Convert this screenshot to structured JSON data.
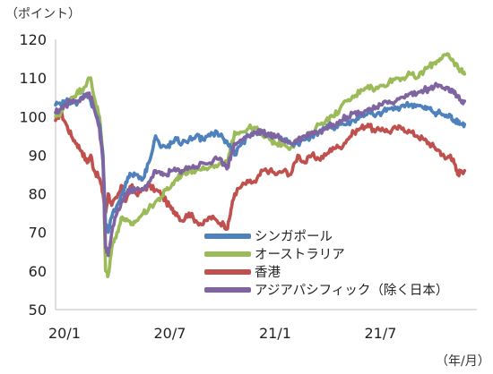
{
  "chart_data": {
    "type": "line",
    "y_unit_label": "（ポイント）",
    "x_unit_label": "（年/月）",
    "ylim": [
      50,
      120
    ],
    "yticks": [
      50,
      60,
      70,
      80,
      90,
      100,
      110,
      120
    ],
    "x_range": [
      0,
      24
    ],
    "xticks": [
      {
        "pos": 0,
        "label": "20/1"
      },
      {
        "pos": 6,
        "label": "20/7"
      },
      {
        "pos": 12,
        "label": "21/1"
      },
      {
        "pos": 18,
        "label": "21/7"
      }
    ],
    "grid": false,
    "legend_position": "lower-right",
    "series": [
      {
        "name": "香港",
        "color": "#c0504d",
        "points": [
          [
            0,
            99
          ],
          [
            0.3,
            101
          ],
          [
            0.6,
            98
          ],
          [
            0.9,
            95
          ],
          [
            1.2,
            93
          ],
          [
            1.5,
            91
          ],
          [
            1.8,
            88
          ],
          [
            2.0,
            90
          ],
          [
            2.2,
            86
          ],
          [
            2.5,
            84
          ],
          [
            2.7,
            80
          ],
          [
            2.85,
            75
          ],
          [
            3.0,
            80
          ],
          [
            3.2,
            77
          ],
          [
            3.5,
            79
          ],
          [
            3.8,
            82
          ],
          [
            4.0,
            78
          ],
          [
            4.3,
            82
          ],
          [
            4.6,
            80
          ],
          [
            5.0,
            81
          ],
          [
            5.3,
            82
          ],
          [
            5.7,
            81
          ],
          [
            6.0,
            80
          ],
          [
            6.3,
            78
          ],
          [
            6.6,
            76
          ],
          [
            6.9,
            75
          ],
          [
            7.2,
            73
          ],
          [
            7.6,
            75
          ],
          [
            8.0,
            73
          ],
          [
            8.4,
            72
          ],
          [
            8.8,
            74
          ],
          [
            9.2,
            73
          ],
          [
            9.6,
            72
          ],
          [
            9.8,
            71
          ],
          [
            10.0,
            76
          ],
          [
            10.2,
            80
          ],
          [
            10.6,
            82
          ],
          [
            11.0,
            83
          ],
          [
            11.4,
            83
          ],
          [
            11.8,
            86
          ],
          [
            12.2,
            86
          ],
          [
            12.6,
            85
          ],
          [
            13.0,
            86
          ],
          [
            13.4,
            85
          ],
          [
            13.8,
            90
          ],
          [
            14.2,
            88
          ],
          [
            14.6,
            90
          ],
          [
            15.0,
            89
          ],
          [
            15.4,
            90
          ],
          [
            15.8,
            92
          ],
          [
            16.2,
            92
          ],
          [
            16.6,
            94
          ],
          [
            17.0,
            96
          ],
          [
            17.4,
            97
          ],
          [
            17.8,
            98
          ],
          [
            18.2,
            96
          ],
          [
            18.6,
            97
          ],
          [
            19.0,
            96
          ],
          [
            19.4,
            97
          ],
          [
            19.8,
            97
          ],
          [
            20.2,
            96
          ],
          [
            20.6,
            95
          ],
          [
            21.0,
            94
          ],
          [
            21.3,
            93
          ],
          [
            21.6,
            92
          ],
          [
            21.9,
            91
          ],
          [
            22.2,
            89
          ],
          [
            22.5,
            90
          ],
          [
            22.7,
            88
          ],
          [
            22.9,
            85
          ],
          [
            23.1,
            86
          ],
          [
            23.3,
            86
          ]
        ]
      },
      {
        "name": "オーストラリア",
        "color": "#9bbb59",
        "points": [
          [
            0,
            100
          ],
          [
            0.3,
            101
          ],
          [
            0.6,
            103
          ],
          [
            0.9,
            105
          ],
          [
            1.2,
            106
          ],
          [
            1.5,
            107
          ],
          [
            1.8,
            109
          ],
          [
            2.0,
            110
          ],
          [
            2.2,
            105
          ],
          [
            2.5,
            100
          ],
          [
            2.7,
            90
          ],
          [
            2.85,
            60
          ],
          [
            3.0,
            59
          ],
          [
            3.2,
            66
          ],
          [
            3.5,
            70
          ],
          [
            3.8,
            74
          ],
          [
            4.0,
            73
          ],
          [
            4.3,
            72
          ],
          [
            4.6,
            73
          ],
          [
            5.0,
            75
          ],
          [
            5.3,
            76
          ],
          [
            5.7,
            78
          ],
          [
            6.0,
            79
          ],
          [
            6.3,
            81
          ],
          [
            6.6,
            82
          ],
          [
            6.9,
            84
          ],
          [
            7.2,
            85
          ],
          [
            7.6,
            86
          ],
          [
            8.0,
            86
          ],
          [
            8.4,
            87
          ],
          [
            8.8,
            87
          ],
          [
            9.2,
            87
          ],
          [
            9.6,
            88
          ],
          [
            9.8,
            88
          ],
          [
            10.0,
            92
          ],
          [
            10.2,
            96
          ],
          [
            10.6,
            96
          ],
          [
            11.0,
            97
          ],
          [
            11.4,
            97
          ],
          [
            11.8,
            95
          ],
          [
            12.2,
            94
          ],
          [
            12.6,
            93
          ],
          [
            13.0,
            93
          ],
          [
            13.4,
            92
          ],
          [
            13.8,
            94
          ],
          [
            14.2,
            94
          ],
          [
            14.6,
            96
          ],
          [
            15.0,
            98
          ],
          [
            15.4,
            99
          ],
          [
            15.8,
            100
          ],
          [
            16.2,
            102
          ],
          [
            16.6,
            104
          ],
          [
            17.0,
            105
          ],
          [
            17.4,
            107
          ],
          [
            17.8,
            108
          ],
          [
            18.2,
            107
          ],
          [
            18.6,
            108
          ],
          [
            19.0,
            109
          ],
          [
            19.4,
            110
          ],
          [
            19.8,
            110
          ],
          [
            20.2,
            111
          ],
          [
            20.6,
            110
          ],
          [
            21.0,
            112
          ],
          [
            21.3,
            113
          ],
          [
            21.6,
            114
          ],
          [
            21.9,
            115
          ],
          [
            22.2,
            116
          ],
          [
            22.5,
            115
          ],
          [
            22.7,
            114
          ],
          [
            22.9,
            113
          ],
          [
            23.1,
            112
          ],
          [
            23.3,
            111
          ]
        ]
      },
      {
        "name": "シンガポール",
        "color": "#4f81bd",
        "points": [
          [
            0,
            103
          ],
          [
            0.3,
            103
          ],
          [
            0.6,
            104
          ],
          [
            0.9,
            104
          ],
          [
            1.2,
            103
          ],
          [
            1.5,
            105
          ],
          [
            1.8,
            106
          ],
          [
            2.0,
            104
          ],
          [
            2.2,
            102
          ],
          [
            2.5,
            98
          ],
          [
            2.7,
            90
          ],
          [
            2.85,
            72
          ],
          [
            3.0,
            70
          ],
          [
            3.2,
            74
          ],
          [
            3.5,
            77
          ],
          [
            3.8,
            80
          ],
          [
            4.0,
            83
          ],
          [
            4.3,
            85
          ],
          [
            4.6,
            85
          ],
          [
            5.0,
            84
          ],
          [
            5.3,
            88
          ],
          [
            5.7,
            95
          ],
          [
            6.0,
            92
          ],
          [
            6.3,
            92
          ],
          [
            6.6,
            93
          ],
          [
            6.9,
            94
          ],
          [
            7.2,
            93
          ],
          [
            7.6,
            94
          ],
          [
            8.0,
            95
          ],
          [
            8.4,
            94
          ],
          [
            8.8,
            95
          ],
          [
            9.2,
            96
          ],
          [
            9.6,
            94
          ],
          [
            9.8,
            93
          ],
          [
            10.0,
            92
          ],
          [
            10.2,
            90
          ],
          [
            10.6,
            93
          ],
          [
            11.0,
            95
          ],
          [
            11.4,
            96
          ],
          [
            11.8,
            96
          ],
          [
            12.2,
            95
          ],
          [
            12.6,
            95
          ],
          [
            13.0,
            94
          ],
          [
            13.4,
            93
          ],
          [
            13.8,
            93
          ],
          [
            14.2,
            94
          ],
          [
            14.6,
            95
          ],
          [
            15.0,
            96
          ],
          [
            15.4,
            97
          ],
          [
            15.8,
            97
          ],
          [
            16.2,
            98
          ],
          [
            16.6,
            98
          ],
          [
            17.0,
            99
          ],
          [
            17.4,
            100
          ],
          [
            17.8,
            101
          ],
          [
            18.2,
            100
          ],
          [
            18.6,
            101
          ],
          [
            19.0,
            102
          ],
          [
            19.4,
            102
          ],
          [
            19.8,
            103
          ],
          [
            20.2,
            103
          ],
          [
            20.6,
            103
          ],
          [
            21.0,
            102
          ],
          [
            21.3,
            102
          ],
          [
            21.6,
            101
          ],
          [
            21.9,
            101
          ],
          [
            22.2,
            100
          ],
          [
            22.5,
            100
          ],
          [
            22.7,
            99
          ],
          [
            22.9,
            99
          ],
          [
            23.1,
            98
          ],
          [
            23.3,
            98
          ]
        ]
      },
      {
        "name": "アジアパシフィック（除く日本）",
        "color": "#8064a2",
        "points": [
          [
            0,
            101
          ],
          [
            0.3,
            102
          ],
          [
            0.6,
            103
          ],
          [
            0.9,
            104
          ],
          [
            1.2,
            104
          ],
          [
            1.5,
            105
          ],
          [
            1.8,
            106
          ],
          [
            2.0,
            105
          ],
          [
            2.2,
            102
          ],
          [
            2.5,
            97
          ],
          [
            2.7,
            88
          ],
          [
            2.85,
            66
          ],
          [
            3.0,
            64
          ],
          [
            3.2,
            70
          ],
          [
            3.5,
            75
          ],
          [
            3.8,
            78
          ],
          [
            4.0,
            80
          ],
          [
            4.3,
            81
          ],
          [
            4.6,
            81
          ],
          [
            5.0,
            81
          ],
          [
            5.3,
            83
          ],
          [
            5.7,
            86
          ],
          [
            6.0,
            85
          ],
          [
            6.3,
            85
          ],
          [
            6.6,
            86
          ],
          [
            6.9,
            86
          ],
          [
            7.2,
            86
          ],
          [
            7.6,
            87
          ],
          [
            8.0,
            87
          ],
          [
            8.4,
            88
          ],
          [
            8.8,
            88
          ],
          [
            9.2,
            89
          ],
          [
            9.6,
            88
          ],
          [
            9.8,
            87
          ],
          [
            10.0,
            90
          ],
          [
            10.2,
            93
          ],
          [
            10.6,
            94
          ],
          [
            11.0,
            95
          ],
          [
            11.4,
            96
          ],
          [
            11.8,
            96
          ],
          [
            12.2,
            95
          ],
          [
            12.6,
            95
          ],
          [
            13.0,
            94
          ],
          [
            13.4,
            93
          ],
          [
            13.8,
            94
          ],
          [
            14.2,
            95
          ],
          [
            14.6,
            96
          ],
          [
            15.0,
            96
          ],
          [
            15.4,
            97
          ],
          [
            15.8,
            98
          ],
          [
            16.2,
            99
          ],
          [
            16.6,
            100
          ],
          [
            17.0,
            101
          ],
          [
            17.4,
            101
          ],
          [
            17.8,
            102
          ],
          [
            18.2,
            102
          ],
          [
            18.6,
            103
          ],
          [
            19.0,
            104
          ],
          [
            19.4,
            104
          ],
          [
            19.8,
            105
          ],
          [
            20.2,
            106
          ],
          [
            20.6,
            106
          ],
          [
            21.0,
            107
          ],
          [
            21.3,
            107
          ],
          [
            21.6,
            108
          ],
          [
            21.9,
            108
          ],
          [
            22.2,
            107
          ],
          [
            22.5,
            107
          ],
          [
            22.7,
            106
          ],
          [
            22.9,
            105
          ],
          [
            23.1,
            104
          ],
          [
            23.3,
            104
          ]
        ]
      }
    ],
    "legend_order": [
      "シンガポール",
      "オーストラリア",
      "香港",
      "アジアパシフィック（除く日本）"
    ]
  }
}
